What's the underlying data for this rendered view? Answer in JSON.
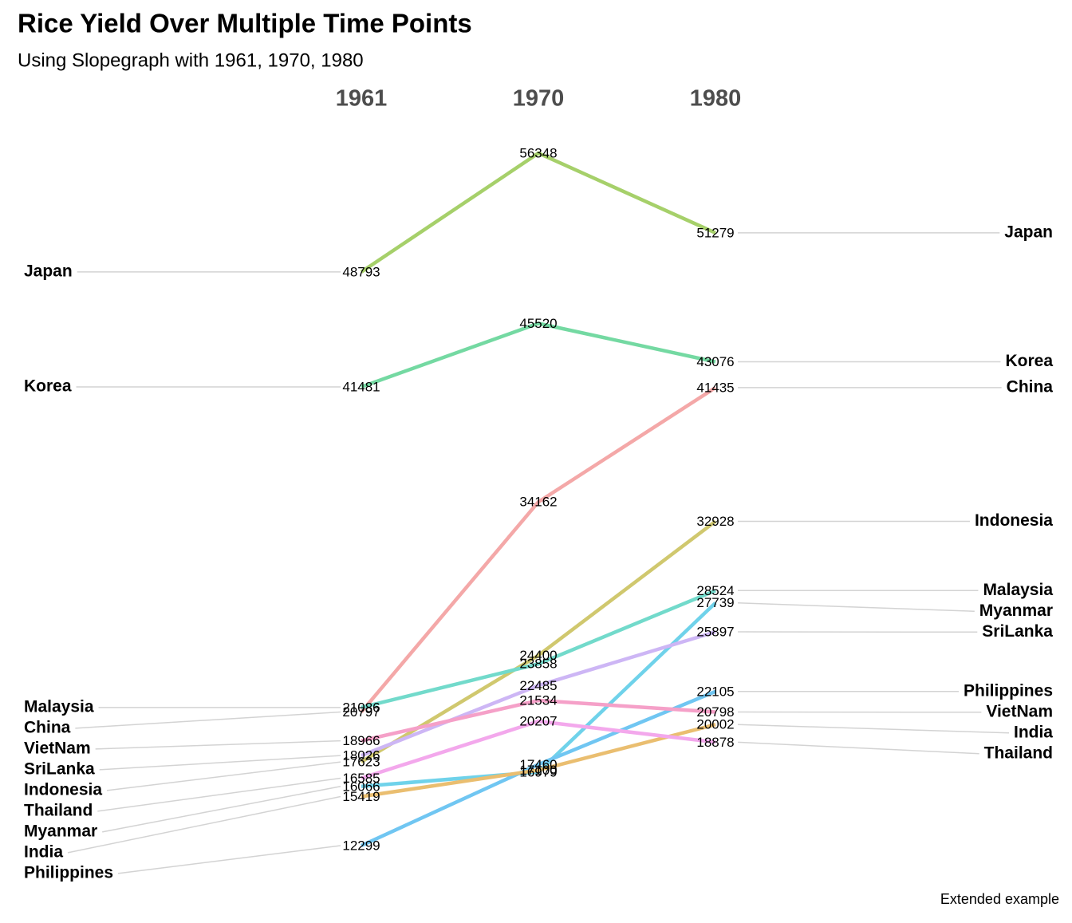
{
  "chart_data": {
    "type": "slope",
    "title": "Rice Yield Over Multiple Time Points",
    "subtitle": "Using Slopegraph with 1961, 1970, 1980",
    "caption": "Extended example",
    "categories": [
      "1961",
      "1970",
      "1980"
    ],
    "series": [
      {
        "name": "Japan",
        "color": "#a6d06a",
        "values": [
          48793,
          56348,
          51279
        ]
      },
      {
        "name": "Korea",
        "color": "#74d9a2",
        "values": [
          41481,
          45520,
          43076
        ]
      },
      {
        "name": "China",
        "color": "#f4a8a8",
        "values": [
          20797,
          34162,
          41435
        ]
      },
      {
        "name": "Indonesia",
        "color": "#d0c86e",
        "values": [
          17623,
          24400,
          32928
        ]
      },
      {
        "name": "Malaysia",
        "color": "#72dacb",
        "values": [
          21086,
          23858,
          28524
        ]
      },
      {
        "name": "Myanmar",
        "color": "#6fd2ea",
        "values": [
          16066,
          16979,
          27739
        ]
      },
      {
        "name": "SriLanka",
        "color": "#cdb6f5",
        "values": [
          18026,
          22485,
          25897
        ]
      },
      {
        "name": "Philippines",
        "color": "#70c6f2",
        "values": [
          12299,
          17460,
          22105
        ]
      },
      {
        "name": "VietNam",
        "color": "#f5a0c8",
        "values": [
          18966,
          21534,
          20798
        ]
      },
      {
        "name": "India",
        "color": "#eabe70",
        "values": [
          15419,
          17100,
          20002
        ]
      },
      {
        "name": "Thailand",
        "color": "#f3a8ec",
        "values": [
          16585,
          20207,
          18878
        ]
      }
    ]
  }
}
